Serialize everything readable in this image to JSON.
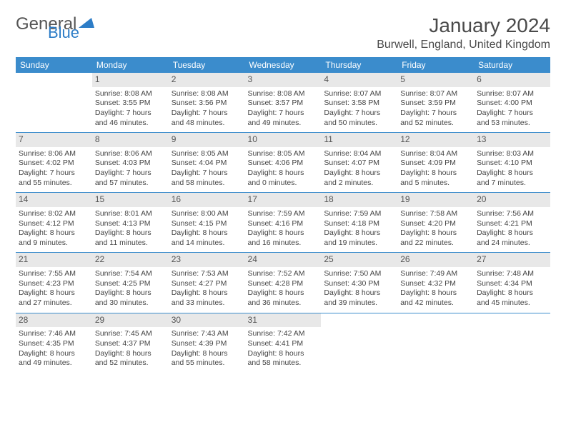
{
  "logo": {
    "text1": "General",
    "text2": "Blue"
  },
  "title": "January 2024",
  "location": "Burwell, England, United Kingdom",
  "day_headers": [
    "Sunday",
    "Monday",
    "Tuesday",
    "Wednesday",
    "Thursday",
    "Friday",
    "Saturday"
  ],
  "colors": {
    "header_bg": "#3b8ccc",
    "header_text": "#ffffff",
    "daynum_bg": "#e8e8e8",
    "border": "#3b8ccc",
    "text": "#3a3a3a",
    "logo_blue": "#2d7dc7"
  },
  "weeks": [
    [
      null,
      {
        "n": "1",
        "sr": "Sunrise: 8:08 AM",
        "ss": "Sunset: 3:55 PM",
        "d1": "Daylight: 7 hours",
        "d2": "and 46 minutes."
      },
      {
        "n": "2",
        "sr": "Sunrise: 8:08 AM",
        "ss": "Sunset: 3:56 PM",
        "d1": "Daylight: 7 hours",
        "d2": "and 48 minutes."
      },
      {
        "n": "3",
        "sr": "Sunrise: 8:08 AM",
        "ss": "Sunset: 3:57 PM",
        "d1": "Daylight: 7 hours",
        "d2": "and 49 minutes."
      },
      {
        "n": "4",
        "sr": "Sunrise: 8:07 AM",
        "ss": "Sunset: 3:58 PM",
        "d1": "Daylight: 7 hours",
        "d2": "and 50 minutes."
      },
      {
        "n": "5",
        "sr": "Sunrise: 8:07 AM",
        "ss": "Sunset: 3:59 PM",
        "d1": "Daylight: 7 hours",
        "d2": "and 52 minutes."
      },
      {
        "n": "6",
        "sr": "Sunrise: 8:07 AM",
        "ss": "Sunset: 4:00 PM",
        "d1": "Daylight: 7 hours",
        "d2": "and 53 minutes."
      }
    ],
    [
      {
        "n": "7",
        "sr": "Sunrise: 8:06 AM",
        "ss": "Sunset: 4:02 PM",
        "d1": "Daylight: 7 hours",
        "d2": "and 55 minutes."
      },
      {
        "n": "8",
        "sr": "Sunrise: 8:06 AM",
        "ss": "Sunset: 4:03 PM",
        "d1": "Daylight: 7 hours",
        "d2": "and 57 minutes."
      },
      {
        "n": "9",
        "sr": "Sunrise: 8:05 AM",
        "ss": "Sunset: 4:04 PM",
        "d1": "Daylight: 7 hours",
        "d2": "and 58 minutes."
      },
      {
        "n": "10",
        "sr": "Sunrise: 8:05 AM",
        "ss": "Sunset: 4:06 PM",
        "d1": "Daylight: 8 hours",
        "d2": "and 0 minutes."
      },
      {
        "n": "11",
        "sr": "Sunrise: 8:04 AM",
        "ss": "Sunset: 4:07 PM",
        "d1": "Daylight: 8 hours",
        "d2": "and 2 minutes."
      },
      {
        "n": "12",
        "sr": "Sunrise: 8:04 AM",
        "ss": "Sunset: 4:09 PM",
        "d1": "Daylight: 8 hours",
        "d2": "and 5 minutes."
      },
      {
        "n": "13",
        "sr": "Sunrise: 8:03 AM",
        "ss": "Sunset: 4:10 PM",
        "d1": "Daylight: 8 hours",
        "d2": "and 7 minutes."
      }
    ],
    [
      {
        "n": "14",
        "sr": "Sunrise: 8:02 AM",
        "ss": "Sunset: 4:12 PM",
        "d1": "Daylight: 8 hours",
        "d2": "and 9 minutes."
      },
      {
        "n": "15",
        "sr": "Sunrise: 8:01 AM",
        "ss": "Sunset: 4:13 PM",
        "d1": "Daylight: 8 hours",
        "d2": "and 11 minutes."
      },
      {
        "n": "16",
        "sr": "Sunrise: 8:00 AM",
        "ss": "Sunset: 4:15 PM",
        "d1": "Daylight: 8 hours",
        "d2": "and 14 minutes."
      },
      {
        "n": "17",
        "sr": "Sunrise: 7:59 AM",
        "ss": "Sunset: 4:16 PM",
        "d1": "Daylight: 8 hours",
        "d2": "and 16 minutes."
      },
      {
        "n": "18",
        "sr": "Sunrise: 7:59 AM",
        "ss": "Sunset: 4:18 PM",
        "d1": "Daylight: 8 hours",
        "d2": "and 19 minutes."
      },
      {
        "n": "19",
        "sr": "Sunrise: 7:58 AM",
        "ss": "Sunset: 4:20 PM",
        "d1": "Daylight: 8 hours",
        "d2": "and 22 minutes."
      },
      {
        "n": "20",
        "sr": "Sunrise: 7:56 AM",
        "ss": "Sunset: 4:21 PM",
        "d1": "Daylight: 8 hours",
        "d2": "and 24 minutes."
      }
    ],
    [
      {
        "n": "21",
        "sr": "Sunrise: 7:55 AM",
        "ss": "Sunset: 4:23 PM",
        "d1": "Daylight: 8 hours",
        "d2": "and 27 minutes."
      },
      {
        "n": "22",
        "sr": "Sunrise: 7:54 AM",
        "ss": "Sunset: 4:25 PM",
        "d1": "Daylight: 8 hours",
        "d2": "and 30 minutes."
      },
      {
        "n": "23",
        "sr": "Sunrise: 7:53 AM",
        "ss": "Sunset: 4:27 PM",
        "d1": "Daylight: 8 hours",
        "d2": "and 33 minutes."
      },
      {
        "n": "24",
        "sr": "Sunrise: 7:52 AM",
        "ss": "Sunset: 4:28 PM",
        "d1": "Daylight: 8 hours",
        "d2": "and 36 minutes."
      },
      {
        "n": "25",
        "sr": "Sunrise: 7:50 AM",
        "ss": "Sunset: 4:30 PM",
        "d1": "Daylight: 8 hours",
        "d2": "and 39 minutes."
      },
      {
        "n": "26",
        "sr": "Sunrise: 7:49 AM",
        "ss": "Sunset: 4:32 PM",
        "d1": "Daylight: 8 hours",
        "d2": "and 42 minutes."
      },
      {
        "n": "27",
        "sr": "Sunrise: 7:48 AM",
        "ss": "Sunset: 4:34 PM",
        "d1": "Daylight: 8 hours",
        "d2": "and 45 minutes."
      }
    ],
    [
      {
        "n": "28",
        "sr": "Sunrise: 7:46 AM",
        "ss": "Sunset: 4:35 PM",
        "d1": "Daylight: 8 hours",
        "d2": "and 49 minutes."
      },
      {
        "n": "29",
        "sr": "Sunrise: 7:45 AM",
        "ss": "Sunset: 4:37 PM",
        "d1": "Daylight: 8 hours",
        "d2": "and 52 minutes."
      },
      {
        "n": "30",
        "sr": "Sunrise: 7:43 AM",
        "ss": "Sunset: 4:39 PM",
        "d1": "Daylight: 8 hours",
        "d2": "and 55 minutes."
      },
      {
        "n": "31",
        "sr": "Sunrise: 7:42 AM",
        "ss": "Sunset: 4:41 PM",
        "d1": "Daylight: 8 hours",
        "d2": "and 58 minutes."
      },
      null,
      null,
      null
    ]
  ]
}
